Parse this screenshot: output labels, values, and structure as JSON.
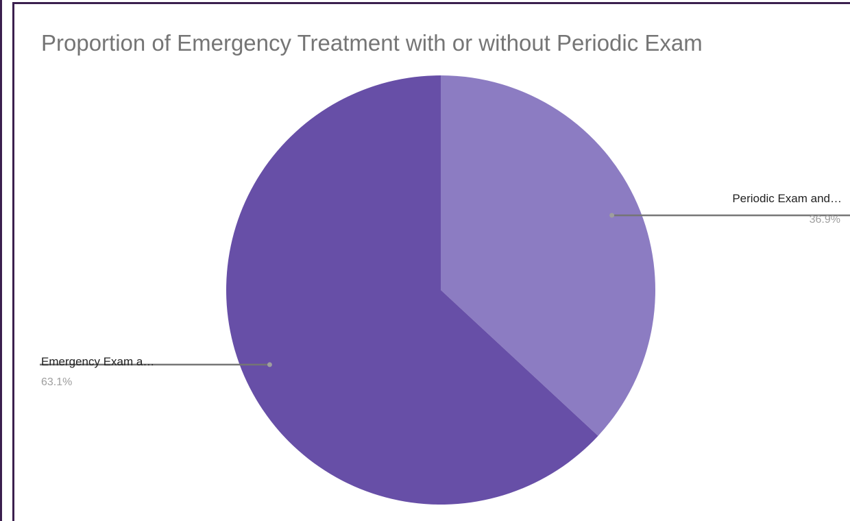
{
  "chart_data": {
    "type": "pie",
    "title": "Proportion of Emergency Treatment with or without Periodic Exam",
    "slices": [
      {
        "label": "Periodic Exam and…",
        "value": 36.9,
        "display": "36.9%",
        "color": "#8c7cc2"
      },
      {
        "label": "Emergency Exam a…",
        "value": 63.1,
        "display": "63.1%",
        "color": "#674fa7"
      }
    ],
    "start_angle_deg": 0,
    "direction": "clockwise",
    "legend": "none",
    "leader_color": "#757575"
  }
}
